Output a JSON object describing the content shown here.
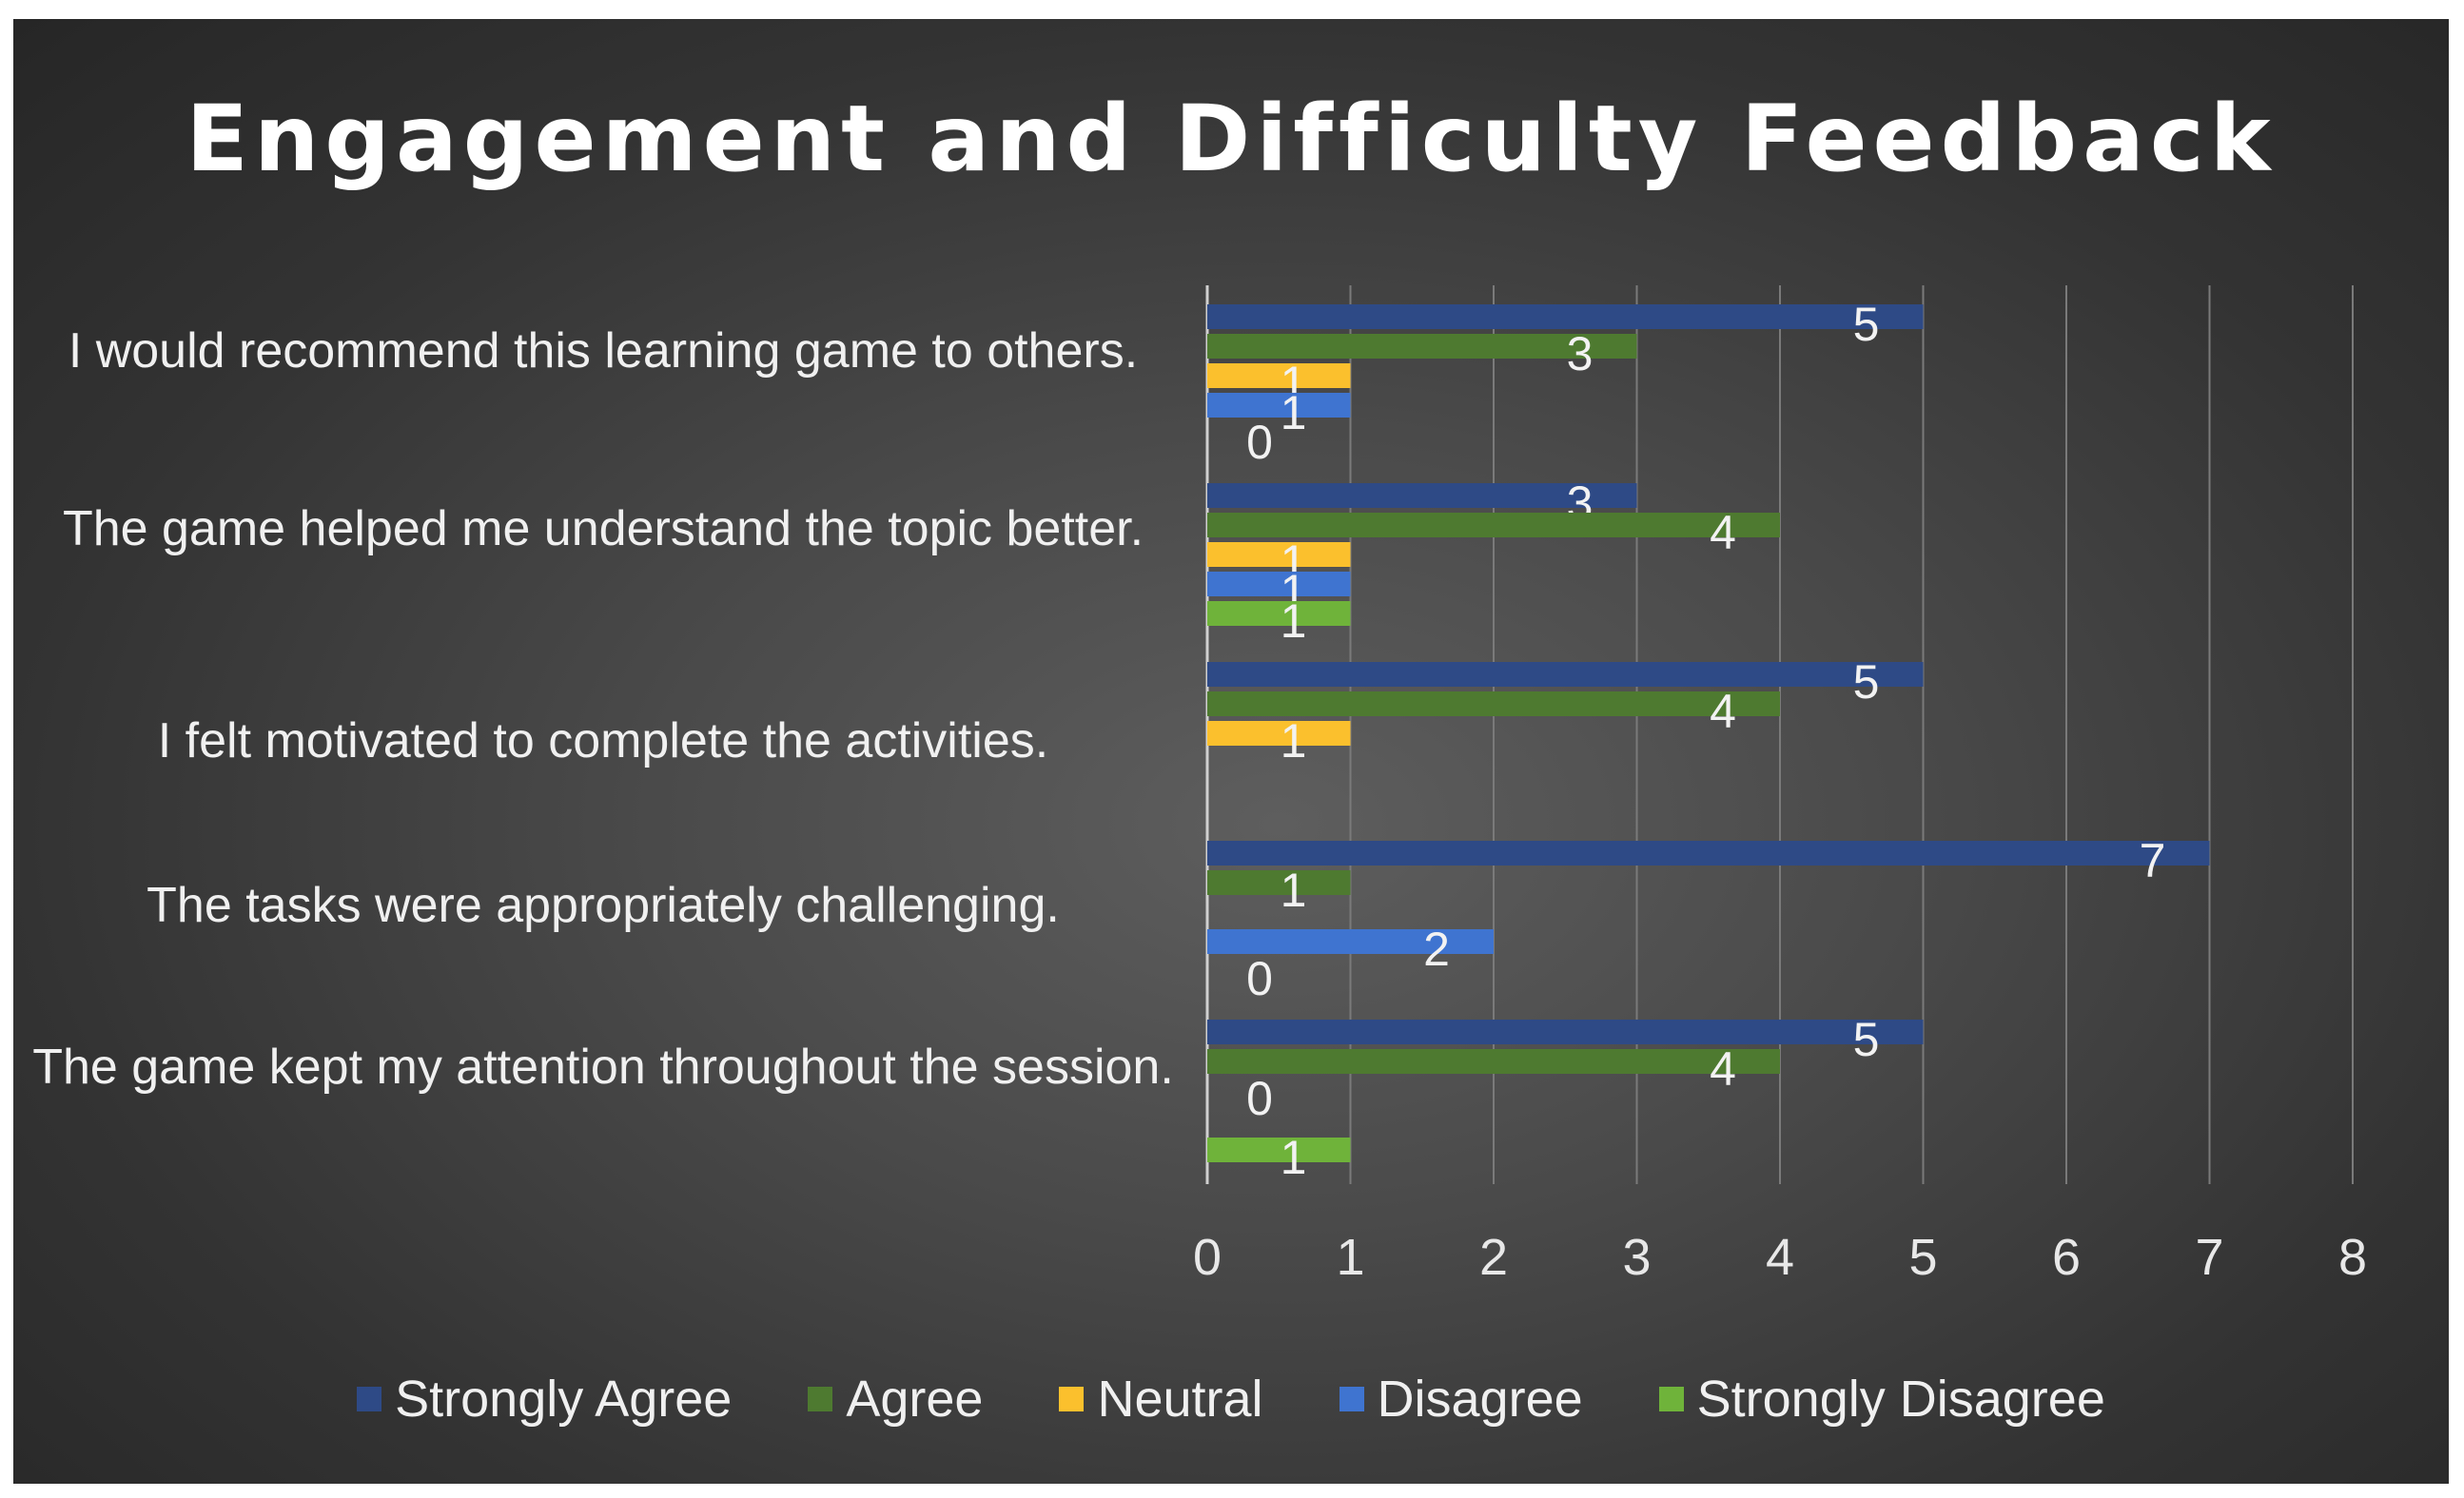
{
  "chart_data": {
    "type": "bar",
    "orientation": "horizontal",
    "title": "Engagement and Difficulty Feedback",
    "categories": [
      "I would recommend this learning game to others.",
      "The game helped me understand the topic better.",
      "I felt motivated to complete the activities.",
      "The tasks were appropriately challenging.",
      "The game kept my attention throughout the session."
    ],
    "series": [
      {
        "name": "Strongly Agree",
        "color": "#2e4a86",
        "values": [
          5,
          3,
          5,
          7,
          5
        ],
        "labels": [
          "5",
          "3",
          "5",
          "7",
          "5"
        ]
      },
      {
        "name": "Agree",
        "color": "#4e7a30",
        "values": [
          3,
          4,
          4,
          1,
          4
        ],
        "labels": [
          "3",
          "4",
          "4",
          "1",
          "4"
        ]
      },
      {
        "name": "Neutral",
        "color": "#fbc02d",
        "values": [
          1,
          1,
          1,
          null,
          null
        ],
        "labels": [
          "1",
          "1",
          "1",
          "",
          ""
        ]
      },
      {
        "name": "Disagree",
        "color": "#3f74d0",
        "values": [
          1,
          1,
          null,
          2,
          null
        ],
        "labels": [
          "1",
          "1",
          "",
          "2",
          ""
        ]
      },
      {
        "name": "Strongly Disagree",
        "color": "#6fb33a",
        "values": [
          0,
          1,
          null,
          0,
          1
        ],
        "labels": [
          "0",
          "1",
          "",
          "0",
          "1"
        ]
      }
    ],
    "extra_labels": [
      {
        "category": 4,
        "series": 2,
        "text": "0"
      }
    ],
    "xlim": [
      0,
      8
    ],
    "xticks": [
      "0",
      "1",
      "2",
      "3",
      "4",
      "5",
      "6",
      "7",
      "8"
    ],
    "grid": true,
    "legend_position": "bottom"
  }
}
